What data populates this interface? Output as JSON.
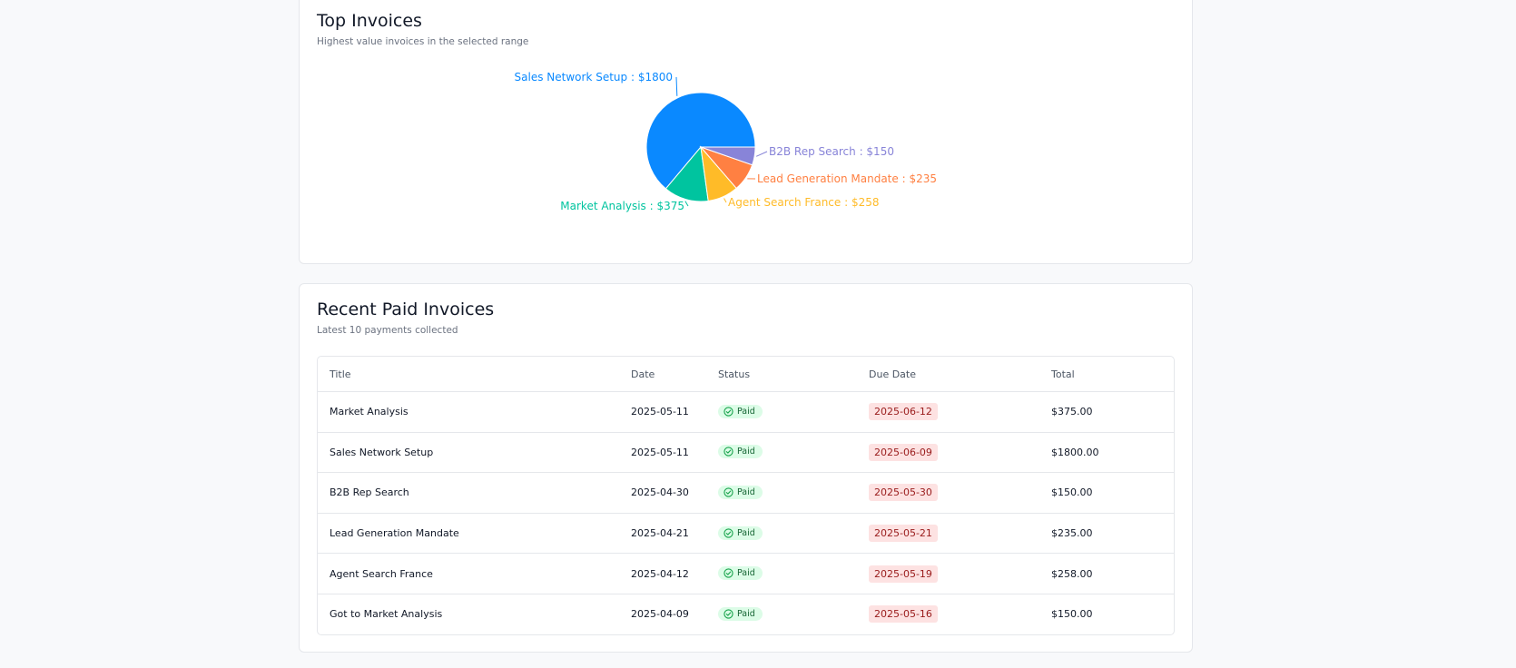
{
  "top_invoices": {
    "title": "Top Invoices",
    "subtitle": "Highest value invoices in the selected range"
  },
  "chart_data": {
    "type": "pie",
    "slices": [
      {
        "label": "Sales Network Setup",
        "value": 1800,
        "display": "Sales Network Setup : $1800",
        "color": "#0a89ff"
      },
      {
        "label": "Market Analysis",
        "value": 375,
        "display": "Market Analysis : $375",
        "color": "#00c49f"
      },
      {
        "label": "Agent Search France",
        "value": 258,
        "display": "Agent Search France : $258",
        "color": "#ffbb28"
      },
      {
        "label": "Lead Generation Mandate",
        "value": 235,
        "display": "Lead Generation Mandate : $235",
        "color": "#ff8042"
      },
      {
        "label": "B2B Rep Search",
        "value": 150,
        "display": "B2B Rep Search : $150",
        "color": "#8884d8"
      }
    ]
  },
  "recent_paid": {
    "title": "Recent Paid Invoices",
    "subtitle": "Latest 10 payments collected",
    "columns": [
      "Title",
      "Date",
      "Status",
      "Due Date",
      "Total"
    ],
    "rows": [
      {
        "title": "Market Analysis",
        "date": "2025-05-11",
        "status": "Paid",
        "due": "2025-06-12",
        "total": "$375.00"
      },
      {
        "title": "Sales Network Setup",
        "date": "2025-05-11",
        "status": "Paid",
        "due": "2025-06-09",
        "total": "$1800.00"
      },
      {
        "title": "B2B Rep Search",
        "date": "2025-04-30",
        "status": "Paid",
        "due": "2025-05-30",
        "total": "$150.00"
      },
      {
        "title": "Lead Generation Mandate",
        "date": "2025-04-21",
        "status": "Paid",
        "due": "2025-05-21",
        "total": "$235.00"
      },
      {
        "title": "Agent Search France",
        "date": "2025-04-12",
        "status": "Paid",
        "due": "2025-05-19",
        "total": "$258.00"
      },
      {
        "title": "Got to Market Analysis",
        "date": "2025-04-09",
        "status": "Paid",
        "due": "2025-05-16",
        "total": "$150.00"
      }
    ]
  },
  "icons": {
    "status": "check-circle-icon"
  }
}
